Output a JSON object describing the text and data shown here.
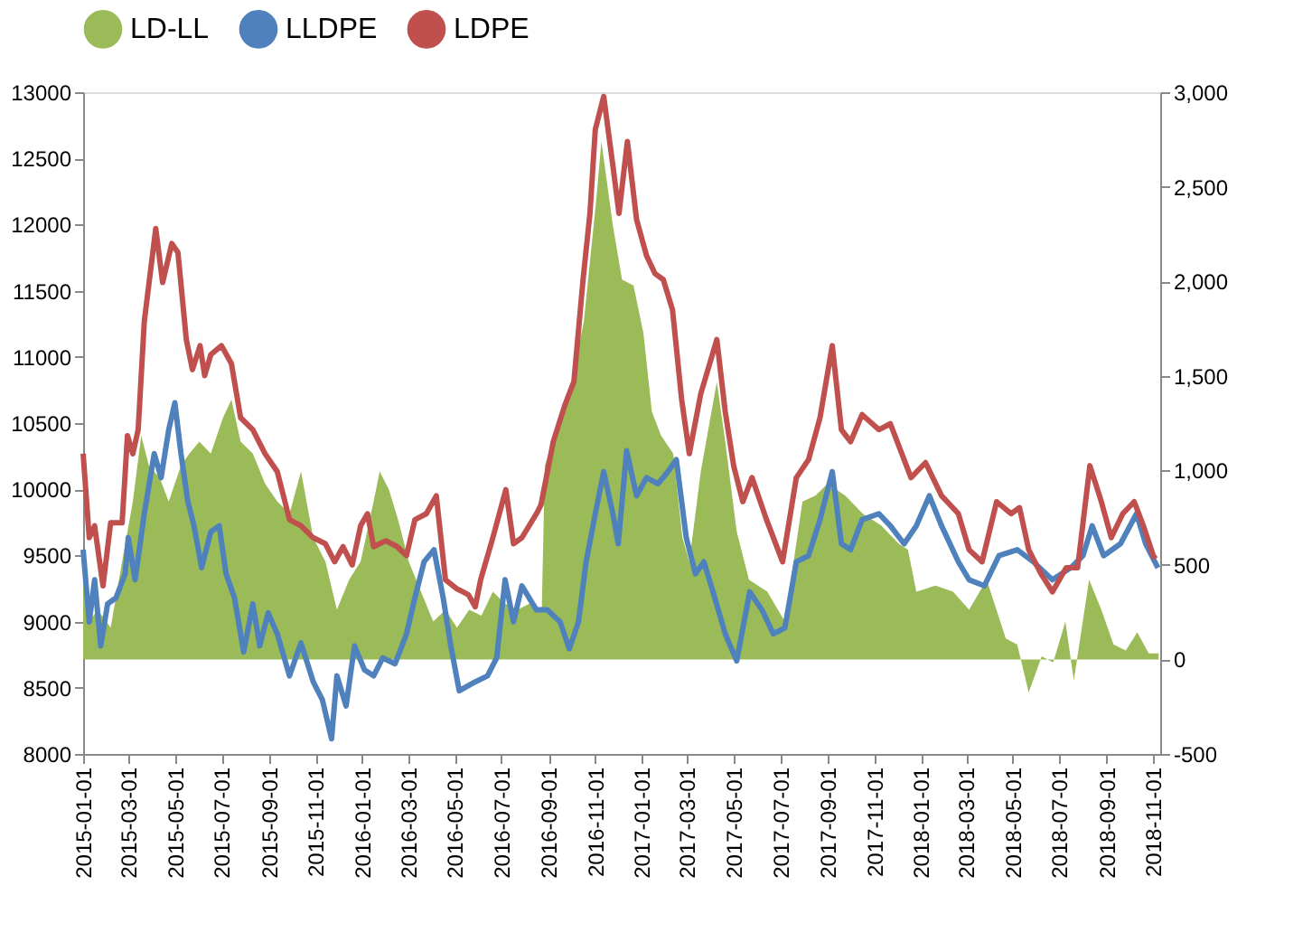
{
  "chart_data": {
    "type": "line",
    "legend": "top",
    "grid": false,
    "marker": "none",
    "line_style": "solid",
    "xlim": [
      "2015-01-01",
      "2018-11-10"
    ],
    "xticks": [
      "2015-01-01",
      "2015-03-01",
      "2015-05-01",
      "2015-07-01",
      "2015-09-01",
      "2015-11-01",
      "2016-01-01",
      "2016-03-01",
      "2016-05-01",
      "2016-07-01",
      "2016-09-01",
      "2016-11-01",
      "2017-01-01",
      "2017-03-01",
      "2017-05-01",
      "2017-07-01",
      "2017-09-01",
      "2017-11-01",
      "2018-01-01",
      "2018-03-01",
      "2018-05-01",
      "2018-07-01",
      "2018-09-01",
      "2018-11-01"
    ],
    "ylim": [
      8000,
      13000
    ],
    "yticks": [
      8000,
      8500,
      9000,
      9500,
      10000,
      10500,
      11000,
      11500,
      12000,
      12500,
      13000
    ],
    "y2lim": [
      -500,
      3000
    ],
    "y2ticks": [
      -500,
      0,
      500,
      {
        "value": 1000,
        "label": "1,000"
      },
      {
        "value": 1500,
        "label": "1,500"
      },
      {
        "value": 2000,
        "label": "2,000"
      },
      {
        "value": 2500,
        "label": "2,500"
      },
      {
        "value": 3000,
        "label": "3,000"
      }
    ],
    "series": [
      {
        "name": "LD-LL",
        "type": "area",
        "axis": "y2",
        "color": "#9bbb59",
        "x": [
          "2015-01-01",
          "2015-01-09",
          "2015-01-20",
          "2015-02-06",
          "2015-02-21",
          "2015-03-07",
          "2015-03-18",
          "2015-03-28",
          "2015-04-11",
          "2015-04-23",
          "2015-05-09",
          "2015-05-20",
          "2015-06-02",
          "2015-06-17",
          "2015-07-03",
          "2015-07-14",
          "2015-07-26",
          "2015-08-11",
          "2015-08-27",
          "2015-09-12",
          "2015-09-28",
          "2015-10-13",
          "2015-10-29",
          "2015-11-14",
          "2015-11-29",
          "2015-12-15",
          "2015-12-30",
          "2016-01-16",
          "2016-01-24",
          "2016-02-05",
          "2016-02-17",
          "2016-03-02",
          "2016-03-18",
          "2016-04-03",
          "2016-04-19",
          "2016-05-04",
          "2016-05-20",
          "2016-06-05",
          "2016-06-20",
          "2016-07-06",
          "2016-07-22",
          "2016-08-07",
          "2016-08-23",
          "2016-08-27",
          "2016-09-16",
          "2016-10-01",
          "2016-10-17",
          "2016-11-02",
          "2016-11-09",
          "2016-11-24",
          "2016-12-06",
          "2016-12-21",
          "2017-01-03",
          "2017-01-14",
          "2017-01-26",
          "2017-02-11",
          "2017-02-23",
          "2017-03-04",
          "2017-03-19",
          "2017-04-09",
          "2017-04-20",
          "2017-05-05",
          "2017-05-21",
          "2017-06-14",
          "2017-07-07",
          "2017-07-30",
          "2017-08-16",
          "2017-09-01",
          "2017-09-24",
          "2017-10-17",
          "2017-11-10",
          "2017-12-03",
          "2017-12-15",
          "2017-12-26",
          "2018-01-20",
          "2018-02-12",
          "2018-03-05",
          "2018-03-28",
          "2018-04-22",
          "2018-05-07",
          "2018-05-22",
          "2018-06-08",
          "2018-06-23",
          "2018-07-09",
          "2018-07-20",
          "2018-08-09",
          "2018-08-25",
          "2018-09-10",
          "2018-09-26",
          "2018-10-11",
          "2018-10-26",
          "2018-11-08"
        ],
        "values": [
          581,
          200,
          263,
          168,
          517,
          835,
          1184,
          1025,
          962,
          835,
          1025,
          1089,
          1152,
          1089,
          1279,
          1374,
          1152,
          1089,
          930,
          835,
          771,
          994,
          644,
          517,
          263,
          422,
          517,
          835,
          994,
          898,
          739,
          517,
          358,
          200,
          263,
          168,
          263,
          232,
          358,
          295,
          263,
          295,
          263,
          1025,
          1279,
          1469,
          1787,
          2422,
          2740,
          2295,
          2009,
          1978,
          1724,
          1311,
          1184,
          1089,
          644,
          517,
          994,
          1469,
          1152,
          676,
          422,
          358,
          200,
          835,
          866,
          930,
          866,
          771,
          708,
          612,
          581,
          358,
          390,
          358,
          263,
          422,
          111,
          79,
          -175,
          16,
          -16,
          200,
          -111,
          422,
          263,
          79,
          48,
          143,
          32,
          32
        ]
      },
      {
        "name": "LLDPE",
        "color": "#4f81bd",
        "x": [
          "2015-01-01",
          "2015-01-09",
          "2015-01-16",
          "2015-01-24",
          "2015-02-02",
          "2015-02-13",
          "2015-02-25",
          "2015-03-01",
          "2015-03-10",
          "2015-03-22",
          "2015-04-04",
          "2015-04-13",
          "2015-04-23",
          "2015-05-01",
          "2015-05-09",
          "2015-05-18",
          "2015-05-26",
          "2015-06-05",
          "2015-06-17",
          "2015-06-28",
          "2015-07-07",
          "2015-07-18",
          "2015-07-30",
          "2015-08-11",
          "2015-08-20",
          "2015-08-31",
          "2015-09-12",
          "2015-09-28",
          "2015-10-13",
          "2015-10-29",
          "2015-11-10",
          "2015-11-22",
          "2015-11-29",
          "2015-12-11",
          "2015-12-22",
          "2016-01-04",
          "2016-01-16",
          "2016-01-28",
          "2016-02-13",
          "2016-02-28",
          "2016-03-10",
          "2016-03-22",
          "2016-04-04",
          "2016-04-16",
          "2016-04-26",
          "2016-05-07",
          "2016-05-28",
          "2016-06-13",
          "2016-06-25",
          "2016-07-06",
          "2016-07-17",
          "2016-07-28",
          "2016-08-16",
          "2016-08-30",
          "2016-09-16",
          "2016-09-28",
          "2016-10-10",
          "2016-10-20",
          "2016-11-01",
          "2016-11-12",
          "2016-11-24",
          "2016-12-01",
          "2016-12-12",
          "2016-12-25",
          "2017-01-07",
          "2017-01-22",
          "2017-02-04",
          "2017-02-15",
          "2017-02-28",
          "2017-03-12",
          "2017-03-23",
          "2017-04-04",
          "2017-04-20",
          "2017-05-05",
          "2017-05-22",
          "2017-06-07",
          "2017-06-22",
          "2017-07-07",
          "2017-07-22",
          "2017-08-07",
          "2017-08-22",
          "2017-09-07",
          "2017-09-19",
          "2017-10-01",
          "2017-10-16",
          "2017-11-07",
          "2017-11-22",
          "2017-12-10",
          "2017-12-26",
          "2018-01-12",
          "2018-01-28",
          "2018-02-19",
          "2018-03-05",
          "2018-03-25",
          "2018-04-13",
          "2018-05-07",
          "2018-05-28",
          "2018-06-22",
          "2018-07-16",
          "2018-08-01",
          "2018-08-13",
          "2018-08-28",
          "2018-09-19",
          "2018-10-10",
          "2018-10-22",
          "2018-11-07"
        ],
        "values": [
          9543,
          8998,
          9316,
          8817,
          9134,
          9180,
          9361,
          9634,
          9316,
          9815,
          10269,
          10088,
          10450,
          10654,
          10269,
          9906,
          9724,
          9407,
          9679,
          9724,
          9361,
          9180,
          8771,
          9134,
          8817,
          9066,
          8907,
          8590,
          8840,
          8545,
          8409,
          8114,
          8590,
          8363,
          8817,
          8636,
          8590,
          8726,
          8681,
          8907,
          9180,
          9452,
          9543,
          9180,
          8817,
          8477,
          8545,
          8590,
          8726,
          9316,
          8998,
          9270,
          9089,
          9089,
          8998,
          8794,
          8998,
          9452,
          9815,
          10133,
          9815,
          9588,
          10291,
          9951,
          10088,
          10042,
          10133,
          10224,
          9634,
          9361,
          9452,
          9225,
          8907,
          8703,
          9225,
          9089,
          8907,
          8953,
          9452,
          9498,
          9770,
          10133,
          9588,
          9543,
          9770,
          9815,
          9724,
          9588,
          9724,
          9951,
          9724,
          9452,
          9316,
          9270,
          9498,
          9543,
          9452,
          9316,
          9407,
          9498,
          9724,
          9498,
          9588,
          9815,
          9588,
          9407
        ]
      },
      {
        "name": "LDPE",
        "color": "#c0504d",
        "x": [
          "2015-01-01",
          "2015-01-09",
          "2015-01-16",
          "2015-01-27",
          "2015-02-06",
          "2015-02-21",
          "2015-02-28",
          "2015-03-07",
          "2015-03-14",
          "2015-03-22",
          "2015-04-06",
          "2015-04-15",
          "2015-04-27",
          "2015-05-05",
          "2015-05-16",
          "2015-05-24",
          "2015-06-03",
          "2015-06-09",
          "2015-06-17",
          "2015-07-01",
          "2015-07-14",
          "2015-07-26",
          "2015-08-11",
          "2015-08-27",
          "2015-09-12",
          "2015-09-28",
          "2015-10-13",
          "2015-10-29",
          "2015-11-14",
          "2015-11-26",
          "2015-12-07",
          "2015-12-19",
          "2015-12-30",
          "2016-01-08",
          "2016-01-16",
          "2016-02-01",
          "2016-02-16",
          "2016-02-28",
          "2016-03-10",
          "2016-03-25",
          "2016-04-07",
          "2016-04-19",
          "2016-05-04",
          "2016-05-19",
          "2016-05-28",
          "2016-06-04",
          "2016-06-20",
          "2016-07-07",
          "2016-07-17",
          "2016-07-28",
          "2016-08-16",
          "2016-08-22",
          "2016-09-07",
          "2016-09-22",
          "2016-10-04",
          "2016-10-16",
          "2016-10-25",
          "2016-11-01",
          "2016-11-12",
          "2016-11-24",
          "2016-12-02",
          "2016-12-13",
          "2016-12-25",
          "2017-01-07",
          "2017-01-18",
          "2017-01-29",
          "2017-02-10",
          "2017-02-22",
          "2017-03-04",
          "2017-03-19",
          "2017-04-09",
          "2017-04-20",
          "2017-05-01",
          "2017-05-13",
          "2017-05-25",
          "2017-06-13",
          "2017-07-04",
          "2017-07-22",
          "2017-08-07",
          "2017-08-22",
          "2017-09-07",
          "2017-09-19",
          "2017-10-01",
          "2017-10-16",
          "2017-11-07",
          "2017-11-22",
          "2017-12-04",
          "2017-12-19",
          "2018-01-07",
          "2018-01-28",
          "2018-02-19",
          "2018-03-05",
          "2018-03-22",
          "2018-04-10",
          "2018-04-29",
          "2018-05-10",
          "2018-05-22",
          "2018-06-07",
          "2018-06-22",
          "2018-07-10",
          "2018-07-25",
          "2018-08-10",
          "2018-08-25",
          "2018-09-07",
          "2018-09-22",
          "2018-10-07",
          "2018-10-19",
          "2018-11-01",
          "2018-11-04"
        ],
        "values": [
          10269,
          9634,
          9724,
          9270,
          9747,
          9747,
          10405,
          10269,
          10450,
          11267,
          11970,
          11562,
          11857,
          11789,
          11131,
          10904,
          11085,
          10859,
          11017,
          11085,
          10949,
          10541,
          10450,
          10269,
          10133,
          9770,
          9724,
          9634,
          9588,
          9452,
          9566,
          9429,
          9724,
          9815,
          9566,
          9611,
          9566,
          9498,
          9770,
          9815,
          9951,
          9316,
          9248,
          9203,
          9112,
          9316,
          9634,
          9997,
          9588,
          9634,
          9815,
          9883,
          10359,
          10632,
          10813,
          11584,
          12084,
          12719,
          12968,
          12446,
          12084,
          12628,
          12038,
          11766,
          11630,
          11584,
          11357,
          10677,
          10269,
          10722,
          11131,
          10586,
          10178,
          9906,
          10088,
          9770,
          9452,
          10088,
          10224,
          10541,
          11085,
          10450,
          10359,
          10564,
          10450,
          10495,
          10314,
          10088,
          10201,
          9951,
          9815,
          9543,
          9452,
          9906,
          9815,
          9861,
          9543,
          9361,
          9225,
          9407,
          9407,
          10178,
          9906,
          9634,
          9815,
          9906,
          9724,
          9498,
          9475
        ]
      }
    ]
  }
}
